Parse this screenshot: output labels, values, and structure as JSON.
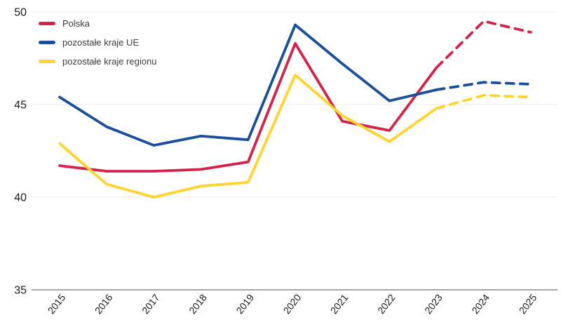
{
  "page": {
    "background": "#ffffff"
  },
  "chart_data": {
    "type": "line",
    "title": "",
    "xlabel": "",
    "ylabel": "",
    "x_labels": [
      "2015",
      "2016",
      "2017",
      "2018",
      "2019",
      "2020",
      "2021",
      "2022",
      "2023",
      "2024",
      "2025"
    ],
    "ylim": [
      35,
      50
    ],
    "yticks": [
      35,
      40,
      45,
      50
    ],
    "grid": "horizontal-light",
    "legend_position": "top-left-inside",
    "forecast_dashed_from_label": "2023",
    "series": [
      {
        "name": "Polska",
        "color": "#D2234A",
        "dashed_from_index": 8,
        "values": [
          41.7,
          41.4,
          41.4,
          41.5,
          41.9,
          48.3,
          44.1,
          43.6,
          47.0,
          49.5,
          48.9
        ]
      },
      {
        "name": "pozostałe kraje UE",
        "color": "#1A4F9C",
        "dashed_from_index": 8,
        "values": [
          45.4,
          43.8,
          42.8,
          43.3,
          43.1,
          49.3,
          47.2,
          45.2,
          45.8,
          46.2,
          46.1
        ]
      },
      {
        "name": "pozostałe kraje regionu",
        "color": "#FFD42E",
        "dashed_from_index": 8,
        "values": [
          42.9,
          40.7,
          40.0,
          40.6,
          40.8,
          46.6,
          44.4,
          43.0,
          44.8,
          45.5,
          45.4
        ]
      }
    ],
    "axis_style": {
      "grid_color": "#EBEBEB",
      "baseline_color": "#9C9C9C",
      "tick_label_color": "#1A1A1A"
    }
  }
}
